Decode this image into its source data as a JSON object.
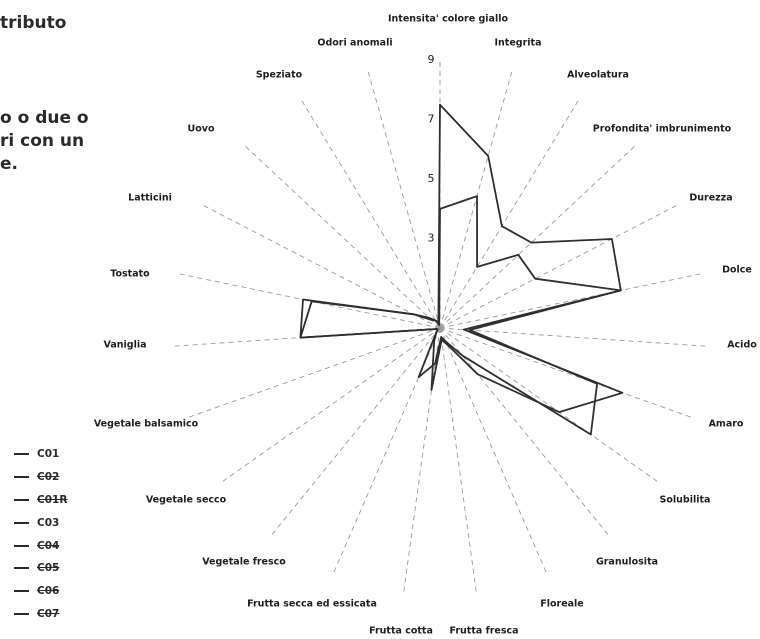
{
  "page_text": {
    "title_fragment": "tributo",
    "body_lines": [
      "o o due o",
      "ri con un",
      "e."
    ]
  },
  "colors": {
    "series": "#2f2f2f",
    "spoke": "#9a9a9a",
    "text": "#1f1f1f"
  },
  "chart_data": {
    "type": "radar",
    "axes": [
      "Intensita' colore giallo",
      "Integrita",
      "Alveolatura",
      "Profondita' imbrunimento",
      "Durezza",
      "Dolce",
      "Acido",
      "Amaro",
      "Solubilita",
      "Granulosita",
      "Floreale",
      "Frutta fresca",
      "Frutta cotta",
      "Frutta secca ed essicata",
      "Vegetale fresco",
      "Vegetale secco",
      "Vegetale balsamico",
      "Vaniglia",
      "Tostato",
      "Latticini",
      "Uovo",
      "Speziato",
      "Odori anomali"
    ],
    "rticks": [
      "3",
      "5",
      "7",
      "9"
    ],
    "rmax": 9,
    "series": [
      {
        "name": "C01",
        "values": [
          7.5,
          6.0,
          4.0,
          4.2,
          6.5,
          6.2,
          1.0,
          5.6,
          6.2,
          1.2,
          0.5,
          0.3,
          1.2,
          1.8,
          0.2,
          0.1,
          0.1,
          4.7,
          4.4,
          1.0,
          0.5,
          0.3,
          0.2
        ]
      },
      {
        "name": "C02",
        "values": [
          4.0,
          4.6,
          2.4,
          3.6,
          3.6,
          6.2,
          0.8,
          6.5,
          4.9,
          2.0,
          0.6,
          0.4,
          2.1,
          0.5,
          0.2,
          0.1,
          0.1,
          4.7,
          4.7,
          1.0,
          0.4,
          0.3,
          0.1
        ]
      }
    ]
  },
  "legend": [
    {
      "label": "C01",
      "strike": false
    },
    {
      "label": "C02",
      "strike": true
    },
    {
      "label": "C01R",
      "strike": true
    },
    {
      "label": "C03",
      "strike": false
    },
    {
      "label": "C04",
      "strike": true
    },
    {
      "label": "C05",
      "strike": true
    },
    {
      "label": "C06",
      "strike": true
    },
    {
      "label": "C07",
      "strike": true
    }
  ]
}
